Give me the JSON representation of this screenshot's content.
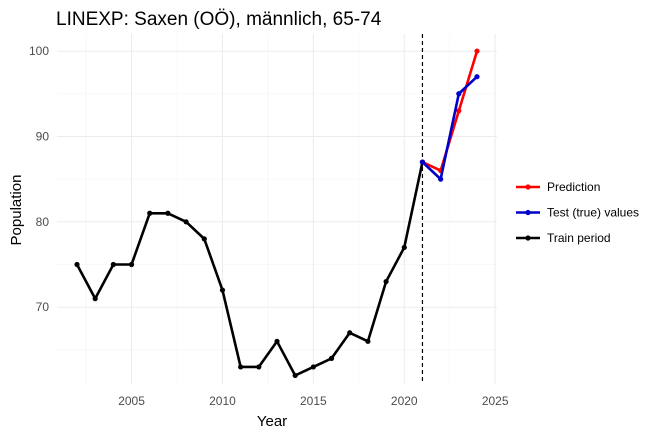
{
  "chart_data": {
    "type": "line",
    "title": "LINEXP: Saxen (OÖ), männlich, 65-74",
    "xlabel": "Year",
    "ylabel": "Population",
    "xlim": [
      2000.9,
      2025.1
    ],
    "ylim": [
      61,
      102
    ],
    "xticks": [
      2005,
      2010,
      2015,
      2020,
      2025
    ],
    "yticks": [
      70,
      80,
      90,
      100
    ],
    "grid": true,
    "legend_position": "right",
    "split_year": 2021,
    "series": [
      {
        "name": "Prediction",
        "color": "#ff0000",
        "x": [
          2021,
          2022,
          2023,
          2024
        ],
        "y": [
          87,
          86,
          93,
          100
        ]
      },
      {
        "name": "Test (true) values",
        "color": "#0000cc",
        "x": [
          2021,
          2022,
          2023,
          2024
        ],
        "y": [
          87,
          85,
          95,
          97
        ]
      },
      {
        "name": "Train period",
        "color": "#000000",
        "x": [
          2002,
          2003,
          2004,
          2005,
          2006,
          2007,
          2008,
          2009,
          2010,
          2011,
          2012,
          2013,
          2014,
          2015,
          2016,
          2017,
          2018,
          2019,
          2020,
          2021
        ],
        "y": [
          75,
          71,
          75,
          75,
          81,
          81,
          80,
          78,
          72,
          63,
          63,
          66,
          62,
          63,
          64,
          67,
          66,
          73,
          77,
          87
        ]
      }
    ]
  }
}
